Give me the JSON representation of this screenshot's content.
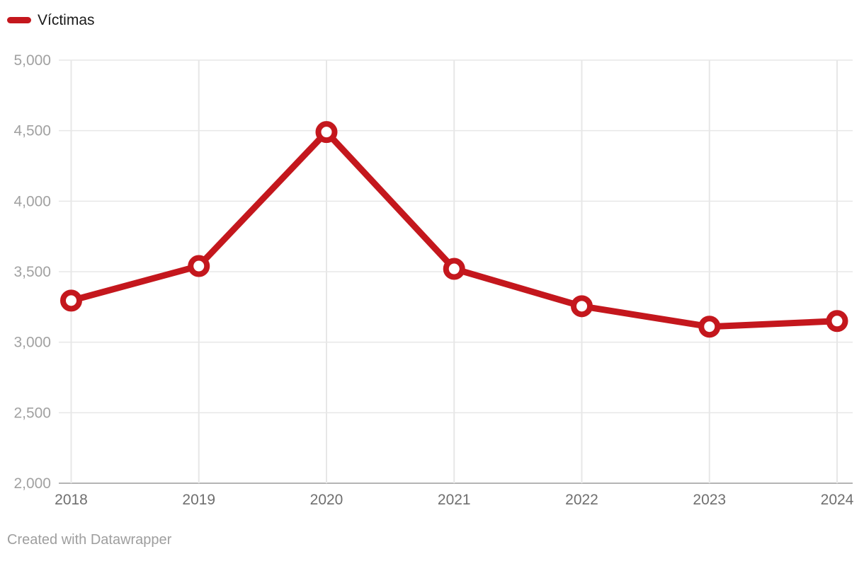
{
  "legend": {
    "label": "Víctimas"
  },
  "footer": {
    "text": "Created with Datawrapper"
  },
  "colors": {
    "line": "#c4171d",
    "marker_fill": "#ffffff",
    "grid": "#e7e7e7",
    "axis_baseline": "#b4b4b4",
    "y_label": "#a1a1a1",
    "x_label": "#6f6f6f",
    "legend_text": "#1a1a1a",
    "footer_text": "#9e9e9e"
  },
  "chart_data": {
    "type": "line",
    "title": "",
    "x": [
      2018,
      2019,
      2020,
      2021,
      2022,
      2023,
      2024
    ],
    "series": [
      {
        "name": "Víctimas",
        "values": [
          3295,
          3540,
          4490,
          3520,
          3255,
          3110,
          3150
        ]
      }
    ],
    "ylim": [
      2000,
      5000
    ],
    "yticks": [
      2000,
      2500,
      3000,
      3500,
      4000,
      4500,
      5000
    ],
    "ytick_labels": [
      "2,000",
      "2,500",
      "3,000",
      "3,500",
      "4,000",
      "4,500",
      "5,000"
    ],
    "grid": "both",
    "legend_position": "top-left",
    "marker": "open-circle"
  }
}
